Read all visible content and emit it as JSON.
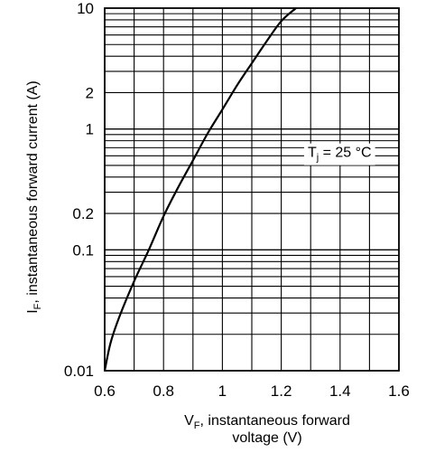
{
  "chart_data": {
    "type": "line",
    "xlabel_main": "V",
    "xlabel_sub": "F",
    "xlabel_rest": ", instantaneous forward",
    "xlabel_line2": "voltage (V)",
    "ylabel_main": "I",
    "ylabel_sub": "F",
    "ylabel_rest": ", instantaneous forward current  (A)",
    "xlim": [
      0.6,
      1.6
    ],
    "ylim": [
      0.01,
      10
    ],
    "yscale": "log",
    "grid": true,
    "x_ticks": [
      {
        "value": 0.6,
        "label": "0.6"
      },
      {
        "value": 0.8,
        "label": "0.8"
      },
      {
        "value": 1.0,
        "label": "1"
      },
      {
        "value": 1.2,
        "label": "1.2"
      },
      {
        "value": 1.4,
        "label": "1.4"
      },
      {
        "value": 1.6,
        "label": "1.6"
      }
    ],
    "y_ticks": [
      {
        "value": 0.01,
        "label": "0.01"
      },
      {
        "value": 0.1,
        "label": "0.1"
      },
      {
        "value": 0.2,
        "label": "0.2"
      },
      {
        "value": 1,
        "label": "1"
      },
      {
        "value": 2,
        "label": "2"
      },
      {
        "value": 10,
        "label": "10"
      }
    ],
    "annotation": {
      "main": "T",
      "sub": "j",
      "rest": " = 25 °C",
      "x": 1.29,
      "y": 0.65
    },
    "series": [
      {
        "x": [
          0.6,
          0.62,
          0.65,
          0.7,
          0.75,
          0.8,
          0.85,
          0.9,
          0.95,
          1.0,
          1.05,
          1.1,
          1.15,
          1.2,
          1.25
        ],
        "y": [
          0.01,
          0.017,
          0.028,
          0.055,
          0.1,
          0.19,
          0.33,
          0.55,
          0.92,
          1.45,
          2.3,
          3.5,
          5.3,
          7.8,
          10.0
        ]
      }
    ]
  }
}
